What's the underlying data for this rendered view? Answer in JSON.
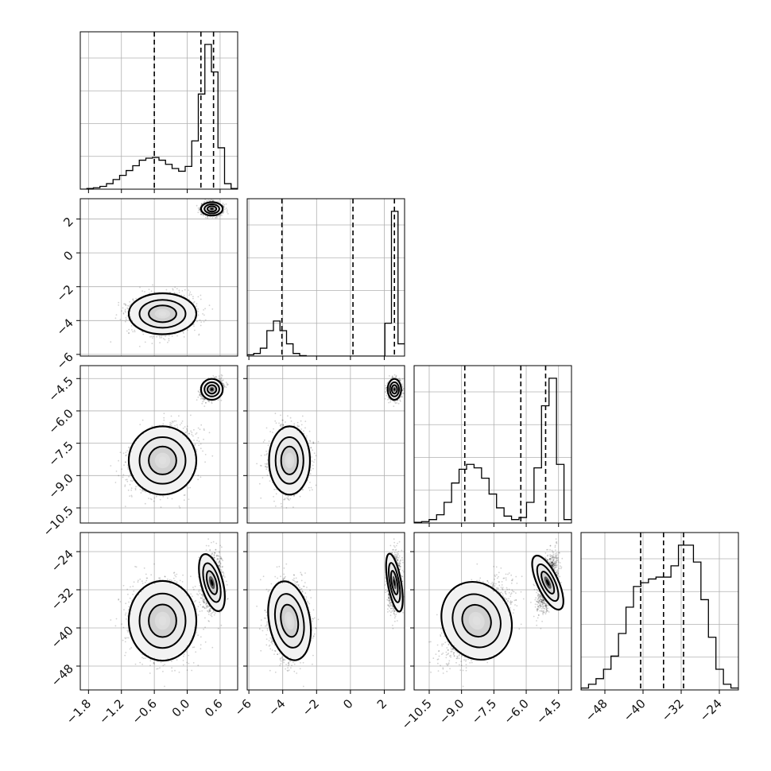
{
  "chart_data": {
    "type": "corner",
    "colors": {
      "line": "#000000",
      "grid": "#b0b0b0",
      "density": "#000000"
    },
    "grid": true,
    "ticks": {
      "p0": [
        "−1.8",
        "−1.2",
        "−0.6",
        "0.0",
        "0.6"
      ],
      "p1": [
        "−6",
        "−4",
        "−2",
        "0",
        "2"
      ],
      "p2": [
        "−10.5",
        "−9.0",
        "−7.5",
        "−6.0",
        "−4.5"
      ],
      "p3": [
        "−48",
        "−40",
        "−32",
        "−24"
      ]
    },
    "tick_values": {
      "p0": [
        -1.8,
        -1.2,
        -0.6,
        0.0,
        0.6
      ],
      "p1": [
        -6,
        -4,
        -2,
        0,
        2
      ],
      "p2": [
        -10.5,
        -9.0,
        -7.5,
        -6.0,
        -4.5
      ],
      "p3": [
        -48,
        -40,
        -32,
        -24
      ]
    },
    "ranges": {
      "p0": [
        -1.95,
        0.92
      ],
      "p1": [
        -6.1,
        3.2
      ],
      "p2": [
        -11.2,
        -3.9
      ],
      "p3": [
        -53,
        -20
      ]
    },
    "histograms": {
      "p0": {
        "edges_range": [
          -1.95,
          0.92
        ],
        "counts": [
          0,
          1,
          2,
          4,
          8,
          14,
          20,
          27,
          34,
          42,
          45,
          46,
          42,
          36,
          30,
          26,
          33,
          70,
          138,
          210,
          170,
          60,
          8,
          1
        ]
      },
      "p1": {
        "edges_range": [
          -6.1,
          3.2
        ],
        "counts": [
          3,
          6,
          18,
          58,
          80,
          58,
          28,
          6,
          1,
          0,
          0,
          0,
          0,
          0,
          0,
          0,
          0,
          0,
          0,
          0,
          0,
          75,
          330,
          28
        ]
      },
      "p2": {
        "edges_range": [
          -11.2,
          -3.9
        ],
        "counts": [
          1,
          2,
          5,
          12,
          30,
          58,
          78,
          85,
          80,
          65,
          42,
          22,
          10,
          5,
          8,
          30,
          80,
          170,
          210,
          85,
          5
        ]
      },
      "p3": {
        "edges_range": [
          -53,
          -20
        ],
        "counts": [
          1,
          3,
          6,
          11,
          18,
          30,
          44,
          55,
          57,
          59,
          60,
          60,
          66,
          77,
          77,
          68,
          48,
          28,
          11,
          3,
          1
        ]
      }
    },
    "quantiles": {
      "p0": [
        -0.6,
        0.25,
        0.48
      ],
      "p1": [
        -4.05,
        0.15,
        2.6
      ],
      "p2": [
        -8.85,
        -6.25,
        -5.1
      ],
      "p3": [
        -40.5,
        -35.7,
        -31.5
      ]
    },
    "modes": [
      {
        "p0": -0.45,
        "p1": -3.6,
        "p2": -8.3,
        "p3": -38.5,
        "s0": 0.28,
        "s1": 0.55,
        "s2": 0.72,
        "s3": 3.8,
        "weight": 0.55
      },
      {
        "p0": 0.45,
        "p1": 2.6,
        "p2": -5.0,
        "p3": -30.5,
        "s0": 0.09,
        "s1": 0.18,
        "s2": 0.22,
        "s3": 2.8,
        "weight": 0.45
      }
    ]
  }
}
